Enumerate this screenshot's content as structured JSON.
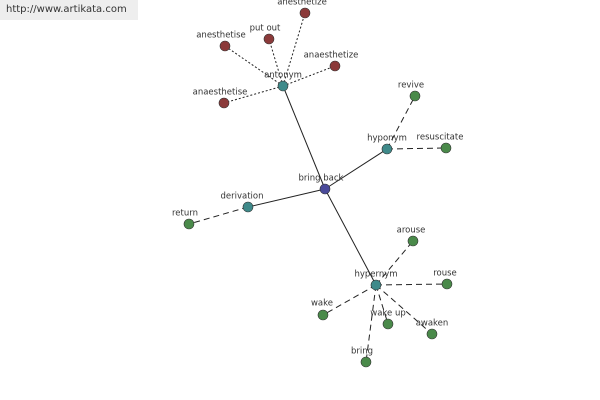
{
  "link": "http://www.artikata.com",
  "nodes": [
    {
      "label": "bring back"
    },
    {
      "label": "antonym"
    },
    {
      "label": "hyponym"
    },
    {
      "label": "derivation"
    },
    {
      "label": "hypernym"
    },
    {
      "label": "anesthetize"
    },
    {
      "label": "put out"
    },
    {
      "label": "anesthetise"
    },
    {
      "label": "anaesthetize"
    },
    {
      "label": "anaesthetise"
    },
    {
      "label": "revive"
    },
    {
      "label": "resuscitate"
    },
    {
      "label": "return"
    },
    {
      "label": "arouse"
    },
    {
      "label": "rouse"
    },
    {
      "label": "wake"
    },
    {
      "label": "wake up"
    },
    {
      "label": "awaken"
    },
    {
      "label": "bring"
    }
  ]
}
